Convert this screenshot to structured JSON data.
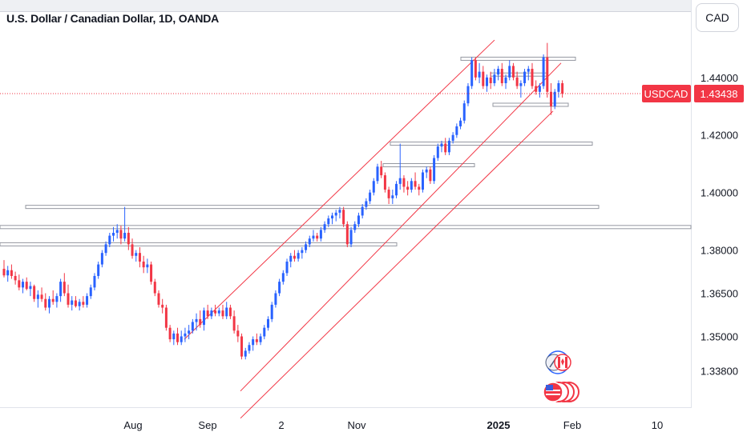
{
  "header": {
    "title": "U.S. Dollar / Canadian Dollar, 1D, OANDA",
    "currency_button": "CAD"
  },
  "price_badge": {
    "symbol": "USDCAD",
    "price": "1.43438",
    "color": "#f23645"
  },
  "colors": {
    "up": "#2962ff",
    "down": "#f23645",
    "channel": "#f23645",
    "level": "#9598a1",
    "flag_red": "#f23645"
  },
  "icons": [
    "usd-cad-flag-icon",
    "currency-flags-stack-icon"
  ],
  "chart_data": {
    "type": "candlestick",
    "title": "U.S. Dollar / Canadian Dollar, 1D, OANDA",
    "xlabel": "",
    "ylabel": "",
    "y_axis_side": "right",
    "ylim": [
      1.3265,
      1.4608
    ],
    "y_ticks": [
      "1.44000",
      "1.42000",
      "1.40000",
      "1.38000",
      "1.36500",
      "1.35000",
      "1.33800"
    ],
    "x_ticks": [
      {
        "label": "Aug",
        "bold": false
      },
      {
        "label": "Sep",
        "bold": false
      },
      {
        "label": "2",
        "bold": false
      },
      {
        "label": "Nov",
        "bold": false
      },
      {
        "label": "2025",
        "bold": true
      },
      {
        "label": "Feb",
        "bold": false
      },
      {
        "label": "10",
        "bold": false
      }
    ],
    "last_price": 1.43438,
    "candles": [
      [
        1.3735,
        1.3765,
        1.3705,
        1.3712
      ],
      [
        1.3712,
        1.3745,
        1.369,
        1.373
      ],
      [
        1.373,
        1.375,
        1.37,
        1.371
      ],
      [
        1.371,
        1.3725,
        1.368,
        1.3695
      ],
      [
        1.3695,
        1.3715,
        1.366,
        1.367
      ],
      [
        1.367,
        1.37,
        1.365,
        1.369
      ],
      [
        1.369,
        1.3705,
        1.366,
        1.3665
      ],
      [
        1.3665,
        1.369,
        1.364,
        1.3675
      ],
      [
        1.3675,
        1.368,
        1.362,
        1.363
      ],
      [
        1.363,
        1.366,
        1.36,
        1.3645
      ],
      [
        1.3645,
        1.367,
        1.362,
        1.363
      ],
      [
        1.363,
        1.365,
        1.359,
        1.36
      ],
      [
        1.36,
        1.364,
        1.358,
        1.363
      ],
      [
        1.363,
        1.366,
        1.361,
        1.362
      ],
      [
        1.362,
        1.365,
        1.36,
        1.364
      ],
      [
        1.364,
        1.37,
        1.362,
        1.369
      ],
      [
        1.369,
        1.372,
        1.364,
        1.365
      ],
      [
        1.365,
        1.368,
        1.36,
        1.361
      ],
      [
        1.361,
        1.364,
        1.359,
        1.3625
      ],
      [
        1.3625,
        1.364,
        1.36,
        1.3605
      ],
      [
        1.3605,
        1.363,
        1.359,
        1.362
      ],
      [
        1.362,
        1.364,
        1.36,
        1.361
      ],
      [
        1.361,
        1.365,
        1.36,
        1.364
      ],
      [
        1.364,
        1.368,
        1.363,
        1.367
      ],
      [
        1.367,
        1.372,
        1.366,
        1.371
      ],
      [
        1.371,
        1.376,
        1.37,
        1.375
      ],
      [
        1.375,
        1.38,
        1.374,
        1.379
      ],
      [
        1.379,
        1.383,
        1.378,
        1.382
      ],
      [
        1.382,
        1.386,
        1.381,
        1.385
      ],
      [
        1.385,
        1.388,
        1.383,
        1.386
      ],
      [
        1.386,
        1.389,
        1.384,
        1.387
      ],
      [
        1.387,
        1.3885,
        1.382,
        1.384
      ],
      [
        1.384,
        1.395,
        1.383,
        1.386
      ],
      [
        1.386,
        1.388,
        1.38,
        1.382
      ],
      [
        1.382,
        1.384,
        1.377,
        1.378
      ],
      [
        1.378,
        1.38,
        1.376,
        1.379
      ],
      [
        1.379,
        1.381,
        1.374,
        1.376
      ],
      [
        1.376,
        1.378,
        1.372,
        1.374
      ],
      [
        1.374,
        1.377,
        1.372,
        1.375
      ],
      [
        1.375,
        1.376,
        1.368,
        1.369
      ],
      [
        1.369,
        1.37,
        1.364,
        1.365
      ],
      [
        1.365,
        1.366,
        1.36,
        1.361
      ],
      [
        1.361,
        1.363,
        1.358,
        1.36
      ],
      [
        1.36,
        1.361,
        1.352,
        1.353
      ],
      [
        1.353,
        1.354,
        1.348,
        1.349
      ],
      [
        1.349,
        1.352,
        1.347,
        1.351
      ],
      [
        1.351,
        1.353,
        1.347,
        1.348
      ],
      [
        1.348,
        1.352,
        1.347,
        1.35
      ],
      [
        1.35,
        1.353,
        1.348,
        1.351
      ],
      [
        1.351,
        1.354,
        1.349,
        1.352
      ],
      [
        1.352,
        1.356,
        1.351,
        1.355
      ],
      [
        1.355,
        1.358,
        1.352,
        1.356
      ],
      [
        1.356,
        1.359,
        1.353,
        1.354
      ],
      [
        1.354,
        1.36,
        1.352,
        1.359
      ],
      [
        1.359,
        1.361,
        1.356,
        1.357
      ],
      [
        1.357,
        1.36,
        1.356,
        1.359
      ],
      [
        1.359,
        1.361,
        1.357,
        1.358
      ],
      [
        1.358,
        1.36,
        1.357,
        1.359
      ],
      [
        1.359,
        1.361,
        1.356,
        1.357
      ],
      [
        1.357,
        1.362,
        1.356,
        1.36
      ],
      [
        1.36,
        1.361,
        1.356,
        1.357
      ],
      [
        1.357,
        1.359,
        1.351,
        1.352
      ],
      [
        1.352,
        1.354,
        1.348,
        1.35
      ],
      [
        1.35,
        1.351,
        1.342,
        1.343
      ],
      [
        1.343,
        1.346,
        1.342,
        1.345
      ],
      [
        1.345,
        1.348,
        1.344,
        1.347
      ],
      [
        1.347,
        1.35,
        1.345,
        1.349
      ],
      [
        1.349,
        1.351,
        1.347,
        1.348
      ],
      [
        1.348,
        1.351,
        1.347,
        1.35
      ],
      [
        1.35,
        1.354,
        1.349,
        1.353
      ],
      [
        1.353,
        1.357,
        1.352,
        1.356
      ],
      [
        1.356,
        1.362,
        1.355,
        1.361
      ],
      [
        1.361,
        1.366,
        1.36,
        1.365
      ],
      [
        1.365,
        1.37,
        1.364,
        1.369
      ],
      [
        1.369,
        1.373,
        1.368,
        1.372
      ],
      [
        1.372,
        1.377,
        1.371,
        1.376
      ],
      [
        1.376,
        1.379,
        1.374,
        1.378
      ],
      [
        1.378,
        1.38,
        1.376,
        1.377
      ],
      [
        1.377,
        1.38,
        1.376,
        1.379
      ],
      [
        1.379,
        1.381,
        1.377,
        1.38
      ],
      [
        1.38,
        1.383,
        1.379,
        1.382
      ],
      [
        1.382,
        1.385,
        1.381,
        1.384
      ],
      [
        1.384,
        1.387,
        1.383,
        1.385
      ],
      [
        1.385,
        1.386,
        1.383,
        1.384
      ],
      [
        1.384,
        1.388,
        1.383,
        1.387
      ],
      [
        1.387,
        1.39,
        1.386,
        1.389
      ],
      [
        1.389,
        1.392,
        1.388,
        1.391
      ],
      [
        1.391,
        1.393,
        1.389,
        1.392
      ],
      [
        1.392,
        1.394,
        1.39,
        1.393
      ],
      [
        1.393,
        1.395,
        1.391,
        1.394
      ],
      [
        1.394,
        1.395,
        1.388,
        1.389
      ],
      [
        1.389,
        1.39,
        1.381,
        1.382
      ],
      [
        1.382,
        1.388,
        1.381,
        1.387
      ],
      [
        1.387,
        1.39,
        1.386,
        1.389
      ],
      [
        1.389,
        1.393,
        1.388,
        1.392
      ],
      [
        1.392,
        1.396,
        1.391,
        1.395
      ],
      [
        1.395,
        1.398,
        1.394,
        1.397
      ],
      [
        1.397,
        1.401,
        1.396,
        1.4
      ],
      [
        1.4,
        1.405,
        1.399,
        1.404
      ],
      [
        1.404,
        1.41,
        1.403,
        1.409
      ],
      [
        1.409,
        1.411,
        1.405,
        1.406
      ],
      [
        1.406,
        1.407,
        1.4,
        1.401
      ],
      [
        1.401,
        1.402,
        1.396,
        1.398
      ],
      [
        1.398,
        1.401,
        1.396,
        1.399
      ],
      [
        1.399,
        1.404,
        1.398,
        1.403
      ],
      [
        1.403,
        1.417,
        1.401,
        1.405
      ],
      [
        1.405,
        1.406,
        1.4,
        1.402
      ],
      [
        1.402,
        1.404,
        1.399,
        1.401
      ],
      [
        1.401,
        1.405,
        1.4,
        1.404
      ],
      [
        1.404,
        1.407,
        1.401,
        1.402
      ],
      [
        1.402,
        1.403,
        1.399,
        1.401
      ],
      [
        1.401,
        1.408,
        1.4,
        1.407
      ],
      [
        1.407,
        1.409,
        1.405,
        1.408
      ],
      [
        1.408,
        1.409,
        1.403,
        1.404
      ],
      [
        1.404,
        1.413,
        1.403,
        1.412
      ],
      [
        1.412,
        1.417,
        1.411,
        1.416
      ],
      [
        1.416,
        1.418,
        1.414,
        1.417
      ],
      [
        1.417,
        1.419,
        1.413,
        1.414
      ],
      [
        1.414,
        1.419,
        1.413,
        1.418
      ],
      [
        1.418,
        1.421,
        1.417,
        1.42
      ],
      [
        1.42,
        1.424,
        1.419,
        1.423
      ],
      [
        1.423,
        1.426,
        1.422,
        1.425
      ],
      [
        1.425,
        1.432,
        1.424,
        1.431
      ],
      [
        1.431,
        1.438,
        1.43,
        1.437
      ],
      [
        1.437,
        1.447,
        1.436,
        1.446
      ],
      [
        1.446,
        1.447,
        1.439,
        1.44
      ],
      [
        1.44,
        1.445,
        1.438,
        1.442
      ],
      [
        1.442,
        1.444,
        1.436,
        1.437
      ],
      [
        1.437,
        1.441,
        1.435,
        1.44
      ],
      [
        1.44,
        1.442,
        1.436,
        1.438
      ],
      [
        1.438,
        1.443,
        1.437,
        1.441
      ],
      [
        1.441,
        1.444,
        1.439,
        1.443
      ],
      [
        1.443,
        1.445,
        1.437,
        1.438
      ],
      [
        1.438,
        1.441,
        1.436,
        1.44
      ],
      [
        1.44,
        1.446,
        1.439,
        1.444
      ],
      [
        1.444,
        1.445,
        1.439,
        1.44
      ],
      [
        1.44,
        1.442,
        1.436,
        1.437
      ],
      [
        1.437,
        1.439,
        1.433,
        1.438
      ],
      [
        1.438,
        1.443,
        1.437,
        1.442
      ],
      [
        1.442,
        1.444,
        1.439,
        1.443
      ],
      [
        1.443,
        1.445,
        1.436,
        1.437
      ],
      [
        1.437,
        1.439,
        1.434,
        1.435
      ],
      [
        1.435,
        1.438,
        1.433,
        1.437
      ],
      [
        1.437,
        1.448,
        1.436,
        1.447
      ],
      [
        1.447,
        1.452,
        1.433,
        1.435
      ],
      [
        1.435,
        1.438,
        1.427,
        1.43
      ],
      [
        1.43,
        1.436,
        1.429,
        1.435
      ],
      [
        1.435,
        1.439,
        1.433,
        1.438
      ],
      [
        1.438,
        1.439,
        1.433,
        1.4344
      ]
    ],
    "levels": [
      1.4465,
      1.441,
      1.4305,
      1.417,
      1.4095,
      1.395,
      1.388,
      1.382
    ],
    "channel": {
      "upper": [
        [
          1.349,
          1.453
        ]
      ],
      "lower": [
        [
          1.331,
          1.445
        ]
      ]
    }
  }
}
